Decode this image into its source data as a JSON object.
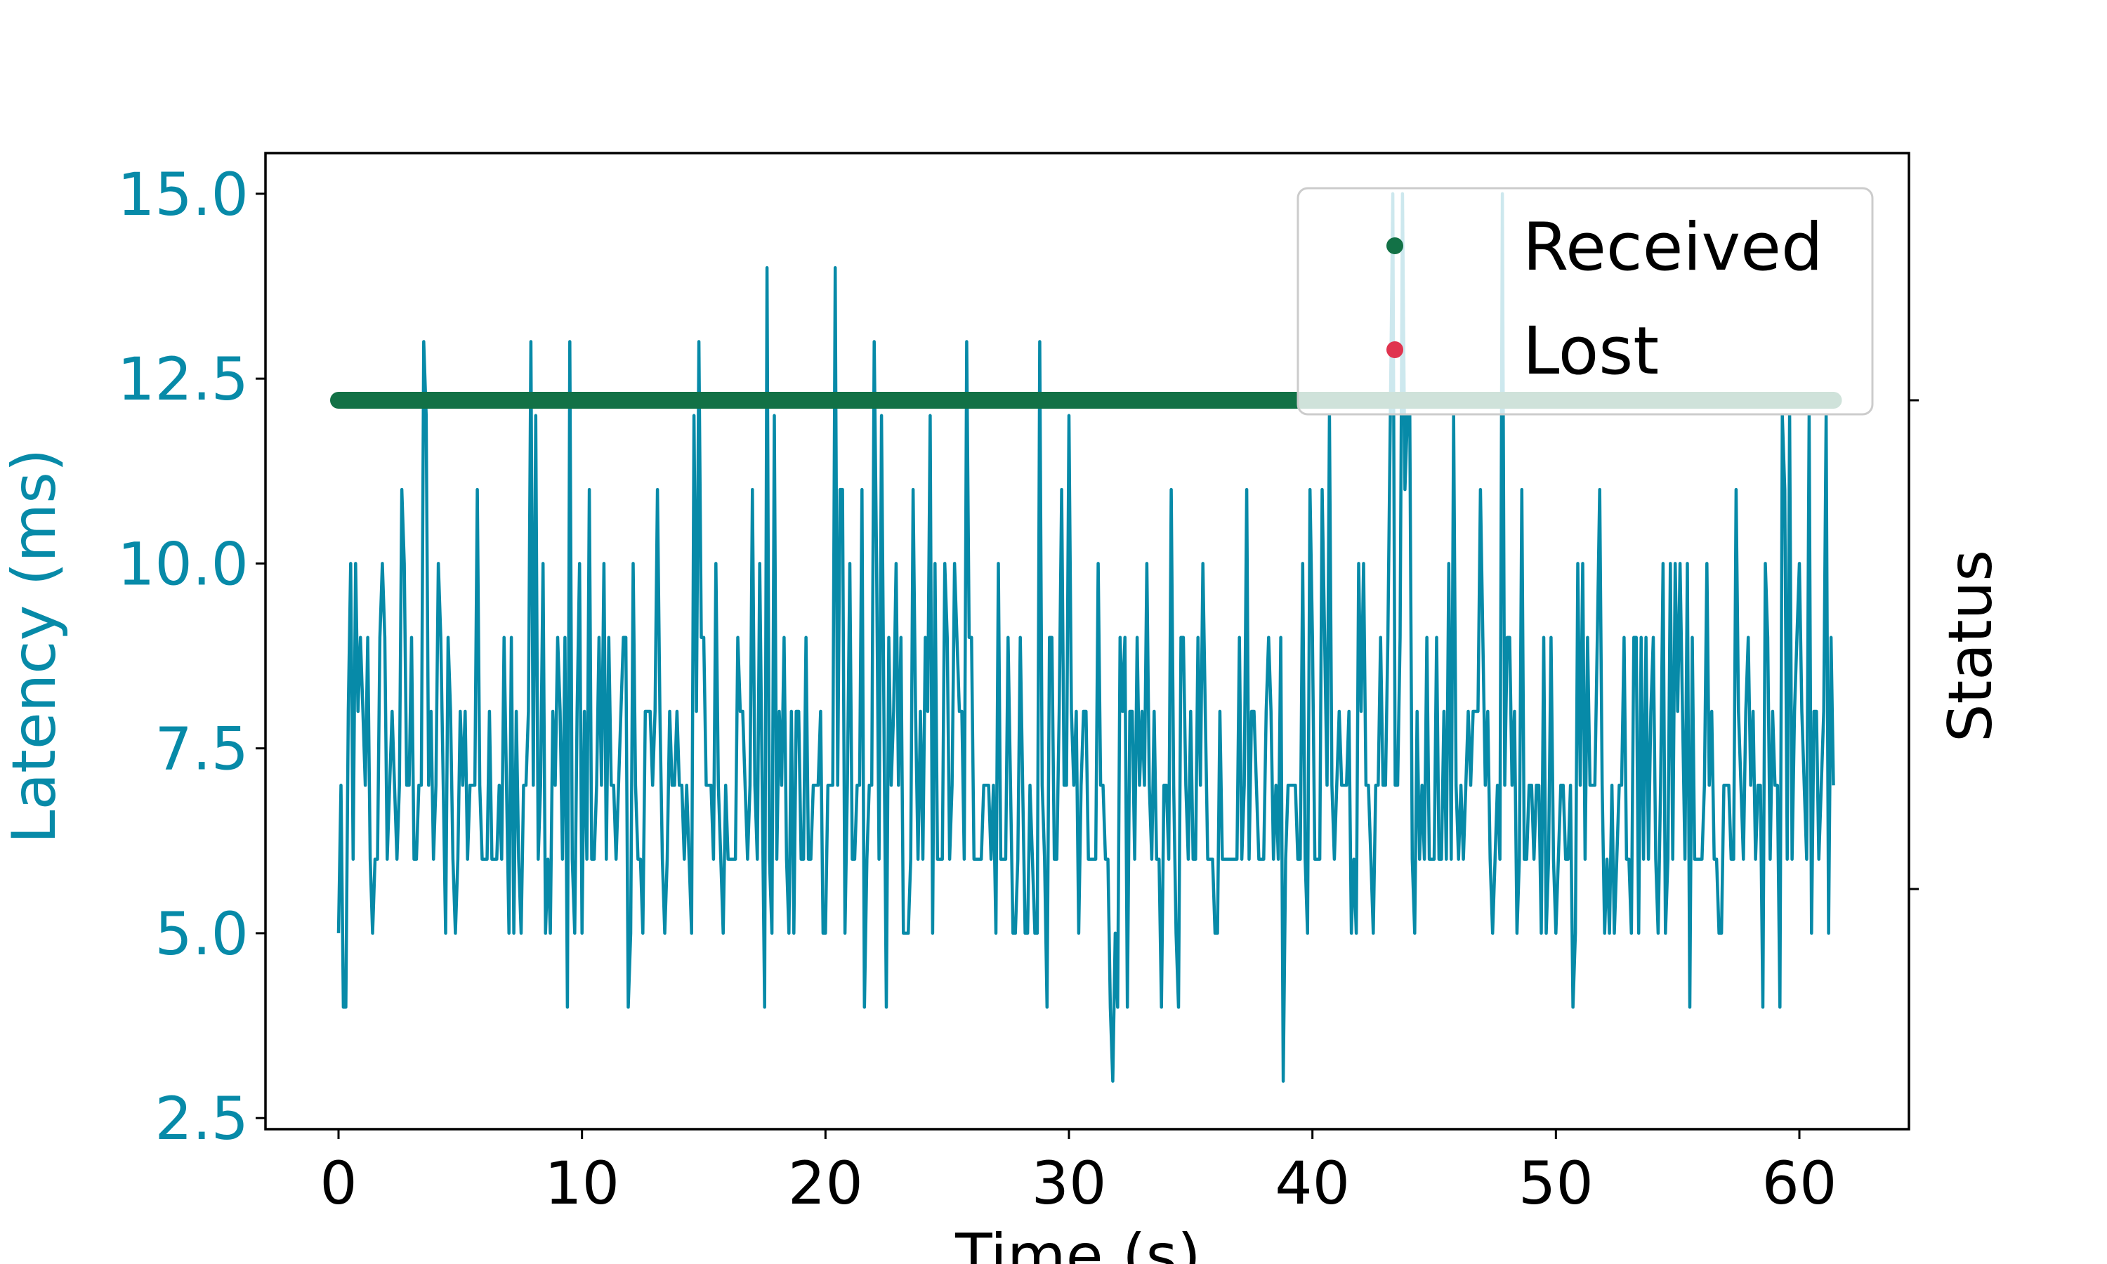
{
  "chart_data": {
    "type": "line",
    "title": "",
    "xlabel": "Time (s)",
    "ylabel": "Latency (ms)",
    "y2label": "Status",
    "xlim": [
      -3,
      64.5
    ],
    "ylim": [
      2.35,
      15.55
    ],
    "xticks": [
      0,
      10,
      20,
      30,
      40,
      50,
      60
    ],
    "yticks": [
      2.5,
      5.0,
      7.5,
      10.0,
      12.5,
      15.0
    ],
    "ytick_labels": [
      "2.5",
      "5.0",
      "7.5",
      "10.0",
      "12.5",
      "15.0"
    ],
    "xtick_labels": [
      "0",
      "10",
      "20",
      "30",
      "40",
      "50",
      "60"
    ],
    "grid": false,
    "legend_position": "top-right",
    "colors": {
      "latency": "#078aa8",
      "received": "#127146",
      "lost": "#e0344f",
      "axis": "#000000"
    },
    "series": [
      {
        "kind": "line",
        "x_range": [
          0,
          61.4
        ],
        "sample_interval": 0.1,
        "latency_min": 3,
        "latency_max": 15,
        "typical_band": [
          5,
          12
        ],
        "anchor_points": [
          {
            "x": 0.0,
            "y": 5
          },
          {
            "x": 0.2,
            "y": 4
          },
          {
            "x": 0.5,
            "y": 10
          },
          {
            "x": 3.5,
            "y": 13
          },
          {
            "x": 7.9,
            "y": 13
          },
          {
            "x": 9.5,
            "y": 13
          },
          {
            "x": 14.8,
            "y": 13
          },
          {
            "x": 17.6,
            "y": 14
          },
          {
            "x": 20.4,
            "y": 14
          },
          {
            "x": 22.0,
            "y": 13
          },
          {
            "x": 25.8,
            "y": 13
          },
          {
            "x": 28.8,
            "y": 13
          },
          {
            "x": 31.8,
            "y": 3
          },
          {
            "x": 38.8,
            "y": 3
          },
          {
            "x": 43.3,
            "y": 15
          },
          {
            "x": 43.7,
            "y": 15
          },
          {
            "x": 47.8,
            "y": 15
          },
          {
            "x": 61.3,
            "y": 9
          }
        ]
      },
      {
        "name": "Received",
        "kind": "status",
        "x_range": [
          0,
          61.4
        ],
        "status_level": "received"
      },
      {
        "name": "Lost",
        "kind": "status",
        "points": []
      }
    ]
  }
}
